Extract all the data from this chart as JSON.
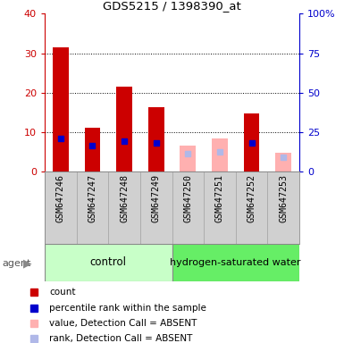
{
  "title": "GDS5215 / 1398390_at",
  "samples": [
    "GSM647246",
    "GSM647247",
    "GSM647248",
    "GSM647249",
    "GSM647250",
    "GSM647251",
    "GSM647252",
    "GSM647253"
  ],
  "count_values": [
    31.5,
    11.2,
    21.5,
    16.2,
    null,
    null,
    14.7,
    null
  ],
  "rank_values": [
    20.8,
    16.2,
    19.0,
    18.0,
    null,
    null,
    18.2,
    null
  ],
  "count_absent": [
    null,
    null,
    null,
    null,
    6.5,
    8.3,
    null,
    4.7
  ],
  "rank_absent": [
    null,
    null,
    null,
    null,
    11.2,
    12.5,
    null,
    9.0
  ],
  "ylim_left": [
    0,
    40
  ],
  "ylim_right": [
    0,
    100
  ],
  "yticks_left": [
    0,
    10,
    20,
    30,
    40
  ],
  "yticks_right": [
    0,
    25,
    50,
    75,
    100
  ],
  "yticklabels_right": [
    "0",
    "25",
    "50",
    "75",
    "100%"
  ],
  "left_axis_color": "#cc0000",
  "right_axis_color": "#0000cc",
  "count_color": "#cc0000",
  "rank_color": "#0000cc",
  "count_absent_color": "#ffb0b0",
  "rank_absent_color": "#b0b8e8",
  "control_color": "#c8ffc8",
  "hydrogen_color": "#66ee66",
  "xlabel_gray": "#d0d0d0",
  "legend_items": [
    {
      "label": "count",
      "color": "#cc0000"
    },
    {
      "label": "percentile rank within the sample",
      "color": "#0000cc"
    },
    {
      "label": "value, Detection Call = ABSENT",
      "color": "#ffb0b0"
    },
    {
      "label": "rank, Detection Call = ABSENT",
      "color": "#b0b8e8"
    }
  ]
}
